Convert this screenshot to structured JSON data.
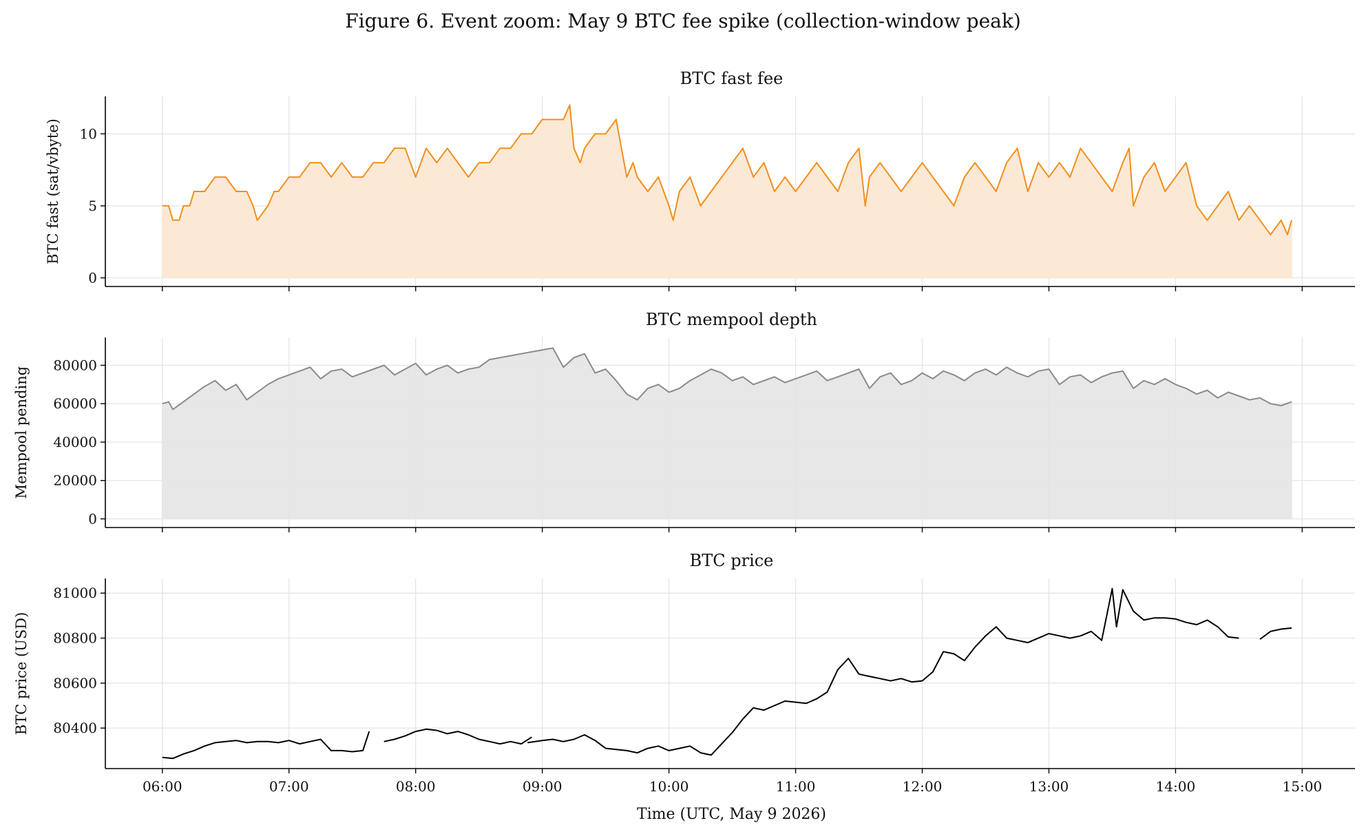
{
  "figure": {
    "title": "Figure 6. Event zoom: May 9 BTC fee spike (collection-window peak)",
    "xlabel": "Time (UTC, May 9 2026)"
  },
  "chart_data": [
    {
      "type": "area",
      "title": "BTC fast fee",
      "ylabel": "BTC fast (sat/vbyte)",
      "xlabel": "",
      "color": "#f28e1c",
      "fill": "#fce8d3",
      "xlim": [
        "05:33",
        "15:25"
      ],
      "ylim": [
        -0.6,
        12.6
      ],
      "yticks": [
        0,
        5,
        10
      ],
      "xticks": [
        "06:00",
        "07:00",
        "08:00",
        "09:00",
        "10:00",
        "11:00",
        "12:00",
        "13:00",
        "14:00",
        "15:00"
      ],
      "grid": true,
      "x": [
        "06:00",
        "06:03",
        "06:05",
        "06:08",
        "06:10",
        "06:13",
        "06:15",
        "06:20",
        "06:25",
        "06:30",
        "06:35",
        "06:40",
        "06:43",
        "06:45",
        "06:50",
        "06:53",
        "06:55",
        "07:00",
        "07:05",
        "07:10",
        "07:15",
        "07:20",
        "07:25",
        "07:30",
        "07:35",
        "07:40",
        "07:45",
        "07:50",
        "07:55",
        "08:00",
        "08:05",
        "08:10",
        "08:15",
        "08:20",
        "08:25",
        "08:30",
        "08:35",
        "08:40",
        "08:45",
        "08:50",
        "08:55",
        "09:00",
        "09:05",
        "09:10",
        "09:13",
        "09:15",
        "09:18",
        "09:20",
        "09:25",
        "09:30",
        "09:35",
        "09:40",
        "09:43",
        "09:45",
        "09:50",
        "09:55",
        "10:00",
        "10:02",
        "10:05",
        "10:10",
        "10:15",
        "10:20",
        "10:25",
        "10:30",
        "10:35",
        "10:40",
        "10:45",
        "10:50",
        "10:55",
        "11:00",
        "11:05",
        "11:10",
        "11:15",
        "11:20",
        "11:25",
        "11:30",
        "11:33",
        "11:35",
        "11:40",
        "11:45",
        "11:50",
        "11:55",
        "12:00",
        "12:05",
        "12:10",
        "12:15",
        "12:20",
        "12:25",
        "12:30",
        "12:35",
        "12:40",
        "12:45",
        "12:50",
        "12:55",
        "13:00",
        "13:05",
        "13:10",
        "13:15",
        "13:20",
        "13:25",
        "13:30",
        "13:35",
        "13:38",
        "13:40",
        "13:45",
        "13:50",
        "13:55",
        "14:00",
        "14:05",
        "14:10",
        "14:15",
        "14:20",
        "14:25",
        "14:30",
        "14:35",
        "14:40",
        "14:45",
        "14:50",
        "14:53",
        "14:55"
      ],
      "y": [
        5,
        5,
        4,
        4,
        5,
        5,
        6,
        6,
        7,
        7,
        6,
        6,
        5,
        4,
        5,
        6,
        6,
        7,
        7,
        8,
        8,
        7,
        8,
        7,
        7,
        8,
        8,
        9,
        9,
        7,
        9,
        8,
        9,
        8,
        7,
        8,
        8,
        9,
        9,
        10,
        10,
        11,
        11,
        11,
        12,
        9,
        8,
        9,
        10,
        10,
        11,
        7,
        8,
        7,
        6,
        7,
        5,
        4,
        6,
        7,
        5,
        6,
        7,
        8,
        9,
        7,
        8,
        6,
        7,
        6,
        7,
        8,
        7,
        6,
        8,
        9,
        5,
        7,
        8,
        7,
        6,
        7,
        8,
        7,
        6,
        5,
        7,
        8,
        7,
        6,
        8,
        9,
        6,
        8,
        7,
        8,
        7,
        9,
        8,
        7,
        6,
        8,
        9,
        5,
        7,
        8,
        6,
        7,
        8,
        5,
        4,
        5,
        6,
        4,
        5,
        4,
        3,
        4,
        3,
        4
      ]
    },
    {
      "type": "area",
      "title": "BTC mempool depth",
      "ylabel": "Mempool pending",
      "xlabel": "",
      "color": "#8a8a8a",
      "fill": "#e6e6e6",
      "xlim": [
        "05:33",
        "15:25"
      ],
      "ylim": [
        -4500,
        94500
      ],
      "yticks": [
        0,
        20000,
        40000,
        60000,
        80000
      ],
      "xticks": [
        "06:00",
        "07:00",
        "08:00",
        "09:00",
        "10:00",
        "11:00",
        "12:00",
        "13:00",
        "14:00",
        "15:00"
      ],
      "grid": true,
      "x": [
        "06:00",
        "06:03",
        "06:05",
        "06:10",
        "06:15",
        "06:20",
        "06:25",
        "06:30",
        "06:35",
        "06:40",
        "06:45",
        "06:50",
        "06:55",
        "07:00",
        "07:05",
        "07:10",
        "07:15",
        "07:20",
        "07:25",
        "07:30",
        "07:35",
        "07:40",
        "07:45",
        "07:50",
        "07:55",
        "08:00",
        "08:05",
        "08:10",
        "08:15",
        "08:20",
        "08:25",
        "08:30",
        "08:35",
        "08:40",
        "08:45",
        "08:50",
        "08:55",
        "09:00",
        "09:05",
        "09:10",
        "09:15",
        "09:20",
        "09:25",
        "09:30",
        "09:35",
        "09:40",
        "09:45",
        "09:50",
        "09:55",
        "10:00",
        "10:05",
        "10:10",
        "10:15",
        "10:20",
        "10:25",
        "10:30",
        "10:35",
        "10:40",
        "10:45",
        "10:50",
        "10:55",
        "11:00",
        "11:05",
        "11:10",
        "11:15",
        "11:20",
        "11:25",
        "11:30",
        "11:35",
        "11:40",
        "11:45",
        "11:50",
        "11:55",
        "12:00",
        "12:05",
        "12:10",
        "12:15",
        "12:20",
        "12:25",
        "12:30",
        "12:35",
        "12:40",
        "12:45",
        "12:50",
        "12:55",
        "13:00",
        "13:05",
        "13:10",
        "13:15",
        "13:20",
        "13:25",
        "13:30",
        "13:35",
        "13:40",
        "13:45",
        "13:50",
        "13:55",
        "14:00",
        "14:05",
        "14:10",
        "14:15",
        "14:20",
        "14:25",
        "14:30",
        "14:35",
        "14:40",
        "14:45",
        "14:50",
        "14:55"
      ],
      "y": [
        60000,
        61000,
        57000,
        61000,
        65000,
        69000,
        72000,
        67000,
        70000,
        62000,
        66000,
        70000,
        73000,
        75000,
        77000,
        79000,
        73000,
        77000,
        78000,
        74000,
        76000,
        78000,
        80000,
        75000,
        78000,
        81000,
        75000,
        78000,
        80000,
        76000,
        78000,
        79000,
        83000,
        84000,
        85000,
        86000,
        87000,
        88000,
        89000,
        79000,
        84000,
        86000,
        76000,
        78000,
        72000,
        65000,
        62000,
        68000,
        70000,
        66000,
        68000,
        72000,
        75000,
        78000,
        76000,
        72000,
        74000,
        70000,
        72000,
        74000,
        71000,
        73000,
        75000,
        77000,
        72000,
        74000,
        76000,
        78000,
        68000,
        74000,
        76000,
        70000,
        72000,
        76000,
        73000,
        77000,
        75000,
        72000,
        76000,
        78000,
        75000,
        79000,
        76000,
        74000,
        77000,
        78000,
        70000,
        74000,
        75000,
        71000,
        74000,
        76000,
        77000,
        68000,
        72000,
        70000,
        73000,
        70000,
        68000,
        65000,
        67000,
        63000,
        66000,
        64000,
        62000,
        63000,
        60000,
        59000,
        61000
      ]
    },
    {
      "type": "line",
      "title": "BTC price",
      "ylabel": "BTC price (USD)",
      "xlabel": "Time (UTC, May 9 2026)",
      "color": "#000000",
      "xlim": [
        "05:33",
        "15:25"
      ],
      "ylim": [
        80220,
        81065
      ],
      "yticks": [
        80400,
        80600,
        80800,
        81000
      ],
      "xticks": [
        "06:00",
        "07:00",
        "08:00",
        "09:00",
        "10:00",
        "11:00",
        "12:00",
        "13:00",
        "14:00",
        "15:00"
      ],
      "grid": true,
      "segments": [
        {
          "x": [
            "06:00",
            "06:05",
            "06:10",
            "06:15",
            "06:20",
            "06:25",
            "06:30",
            "06:35",
            "06:40",
            "06:45",
            "06:50",
            "06:55",
            "07:00",
            "07:05",
            "07:10",
            "07:15",
            "07:20",
            "07:25",
            "07:30",
            "07:35",
            "07:38"
          ],
          "y": [
            80270,
            80265,
            80285,
            80300,
            80320,
            80335,
            80340,
            80345,
            80335,
            80340,
            80340,
            80335,
            80345,
            80330,
            80340,
            80350,
            80300,
            80300,
            80295,
            80300,
            80385
          ]
        },
        {
          "x": [
            "07:45",
            "07:50",
            "07:55",
            "08:00",
            "08:05",
            "08:10",
            "08:15",
            "08:20",
            "08:25",
            "08:30",
            "08:35",
            "08:40",
            "08:45",
            "08:50",
            "08:55"
          ],
          "y": [
            80340,
            80350,
            80365,
            80385,
            80395,
            80390,
            80375,
            80385,
            80370,
            80350,
            80340,
            80330,
            80340,
            80330,
            80360
          ]
        },
        {
          "x": [
            "08:53",
            "09:00",
            "09:05",
            "09:10",
            "09:15",
            "09:20",
            "09:25",
            "09:30",
            "09:35",
            "09:40",
            "09:45",
            "09:50",
            "09:55",
            "10:00",
            "10:05",
            "10:10",
            "10:15",
            "10:20",
            "10:25",
            "10:30",
            "10:35",
            "10:40",
            "10:45",
            "10:50",
            "10:55",
            "11:00",
            "11:05",
            "11:10",
            "11:15",
            "11:20",
            "11:25",
            "11:30",
            "11:35",
            "11:40",
            "11:45",
            "11:50",
            "11:55",
            "12:00",
            "12:05",
            "12:10",
            "12:15",
            "12:20",
            "12:25",
            "12:30",
            "12:35",
            "12:40",
            "12:45",
            "12:50",
            "12:55",
            "13:00",
            "13:05",
            "13:10",
            "13:15",
            "13:20",
            "13:25",
            "13:30",
            "13:32",
            "13:35",
            "13:40",
            "13:45",
            "13:50",
            "13:55",
            "14:00",
            "14:05",
            "14:10",
            "14:15",
            "14:20",
            "14:25",
            "14:30"
          ],
          "y": [
            80335,
            80345,
            80350,
            80340,
            80350,
            80370,
            80345,
            80310,
            80305,
            80300,
            80290,
            80310,
            80320,
            80300,
            80310,
            80320,
            80290,
            80280,
            80330,
            80380,
            80440,
            80490,
            80480,
            80500,
            80520,
            80515,
            80510,
            80530,
            80560,
            80660,
            80710,
            80640,
            80630,
            80620,
            80610,
            80620,
            80605,
            80610,
            80650,
            80740,
            80730,
            80700,
            80760,
            80810,
            80850,
            80800,
            80790,
            80780,
            80800,
            80820,
            80810,
            80800,
            80810,
            80830,
            80790,
            81020,
            80850,
            81015,
            80920,
            80880,
            80890,
            80890,
            80885,
            80870,
            80860,
            80880,
            80850,
            80805,
            80800
          ]
        },
        {
          "x": [
            "14:40",
            "14:45",
            "14:50",
            "14:55"
          ],
          "y": [
            80795,
            80830,
            80840,
            80845
          ]
        }
      ]
    }
  ]
}
